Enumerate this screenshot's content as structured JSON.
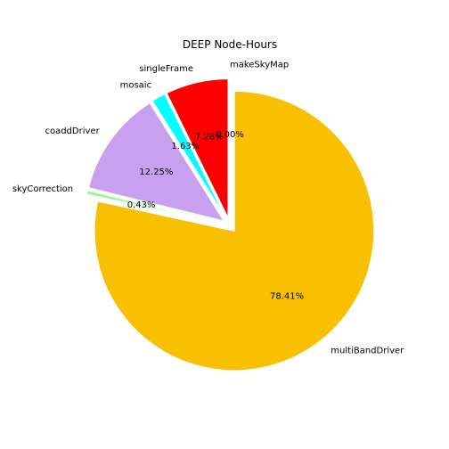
{
  "chart_data": {
    "type": "pie",
    "title": "DEEP Node-Hours",
    "start_angle_deg": 90,
    "direction": "counterclockwise",
    "explode": 0.05,
    "edge_color": "#ffffff",
    "slices": [
      {
        "label": "makeSkyMap",
        "value": 0.0,
        "pct_label": "0.00%",
        "color": "#ff0000"
      },
      {
        "label": "singleFrame",
        "value": 7.28,
        "pct_label": "7.28%",
        "color": "#ff0000"
      },
      {
        "label": "mosaic",
        "value": 1.63,
        "pct_label": "1.63%",
        "color": "#00ffff"
      },
      {
        "label": "coaddDriver",
        "value": 12.25,
        "pct_label": "12.25%",
        "color": "#c8a0f0"
      },
      {
        "label": "skyCorrection",
        "value": 0.43,
        "pct_label": "0.43%",
        "color": "#80ff80"
      },
      {
        "label": "multiBandDriver",
        "value": 78.41,
        "pct_label": "78.41%",
        "color": "#f8c000"
      }
    ]
  }
}
